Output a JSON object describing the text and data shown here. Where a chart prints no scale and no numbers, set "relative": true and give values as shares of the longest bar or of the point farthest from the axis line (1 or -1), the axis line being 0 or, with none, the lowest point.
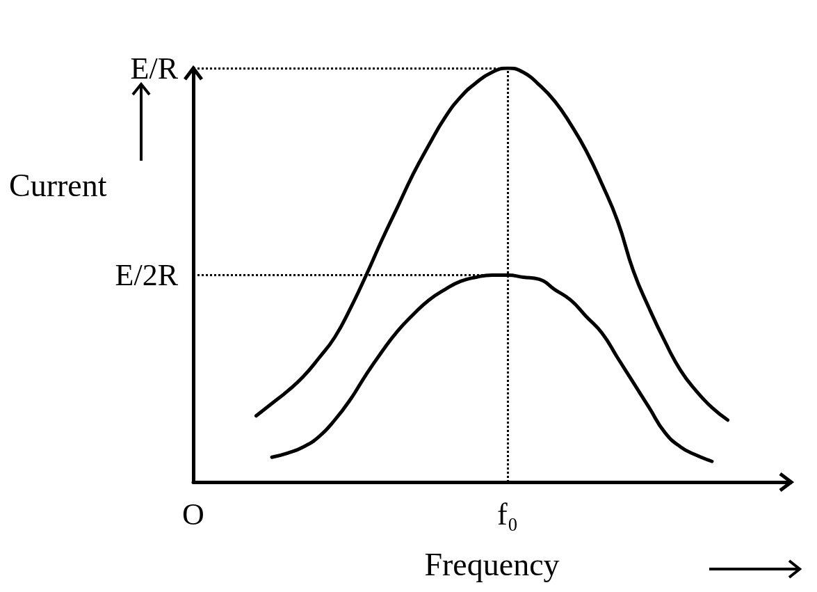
{
  "chart_data": {
    "type": "line",
    "xlabel": "Frequency",
    "ylabel": "Current",
    "relative": true,
    "categories": [
      "O",
      null,
      null,
      null,
      null,
      null,
      null,
      null,
      null,
      null,
      null,
      null,
      null,
      null,
      null,
      null,
      null,
      null,
      null,
      null,
      "f₀",
      null,
      null,
      null,
      null,
      null,
      null,
      null,
      null,
      null,
      null,
      null,
      null,
      null,
      null,
      null,
      null,
      null,
      null
    ],
    "marker": "none",
    "line_style": "solid",
    "ref_lines": [
      {
        "axis": "y",
        "value": 1,
        "label": "E/R",
        "line_style": "dotted",
        "color": "#000000"
      },
      {
        "axis": "y",
        "value": 0.5,
        "label": "E/2R",
        "line_style": "dotted",
        "color": "#000000"
      },
      {
        "axis": "x",
        "value": "f₀",
        "line_style": "dotted",
        "color": "#000000"
      }
    ],
    "series": [
      {
        "color": "#000000",
        "values": [
          null,
          null,
          null,
          null,
          0.16,
          0.19,
          0.22,
          0.255,
          0.3,
          0.35,
          0.42,
          0.5,
          0.585,
          0.665,
          0.745,
          0.815,
          0.88,
          0.93,
          0.965,
          0.99,
          1,
          0.99,
          0.96,
          0.92,
          0.865,
          0.8,
          0.72,
          0.63,
          0.51,
          0.42,
          0.34,
          0.27,
          0.22,
          0.18,
          0.15,
          null,
          null,
          null,
          null
        ]
      },
      {
        "color": "#000000",
        "values": [
          null,
          null,
          null,
          null,
          null,
          0.06,
          0.07,
          0.085,
          0.11,
          0.15,
          0.2,
          0.26,
          0.315,
          0.365,
          0.405,
          0.44,
          0.465,
          0.485,
          0.495,
          0.5,
          0.5,
          0.495,
          0.49,
          0.465,
          0.44,
          0.4,
          0.36,
          0.3,
          0.24,
          0.18,
          0.12,
          0.085,
          0.065,
          0.05,
          null,
          null,
          null,
          null,
          null
        ]
      }
    ]
  }
}
